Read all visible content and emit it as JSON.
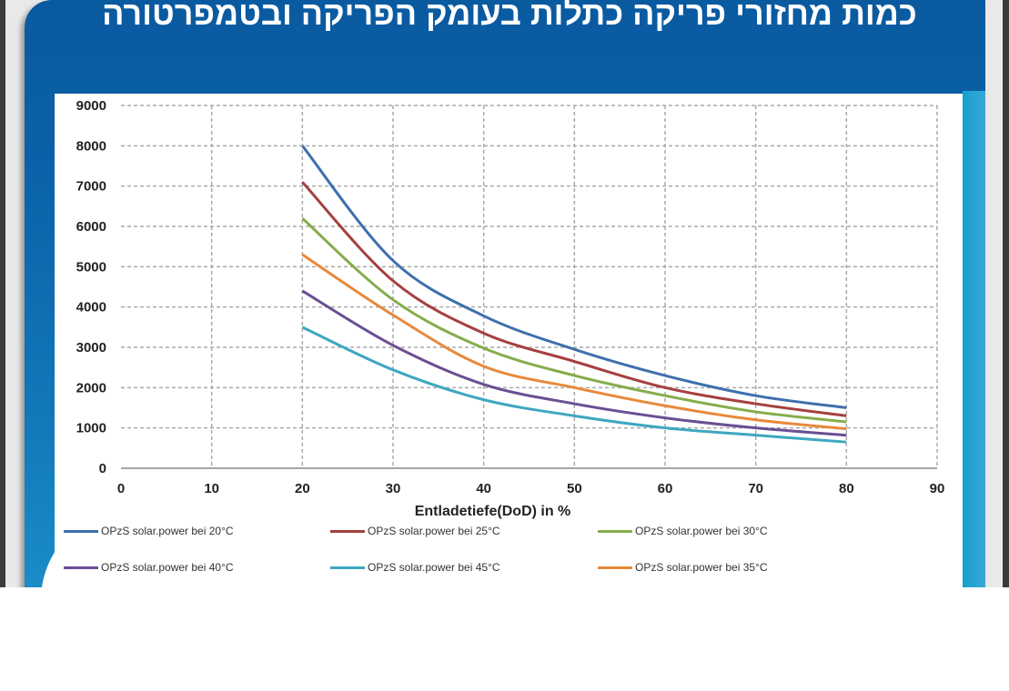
{
  "slide": {
    "title": "כמות מחזורי פריקה כתלות בעומק הפריקה ובטמפרטורה"
  },
  "chart_data": {
    "type": "line",
    "title": "",
    "xlabel": "Entladetiefe(DoD) in %",
    "ylabel": "",
    "xlim": [
      0,
      90
    ],
    "ylim": [
      0,
      9000
    ],
    "xticks": [
      "0",
      "10",
      "20",
      "30",
      "40",
      "50",
      "60",
      "70",
      "80",
      "90"
    ],
    "yticks": [
      "0",
      "1000",
      "2000",
      "3000",
      "4000",
      "5000",
      "6000",
      "7000",
      "8000",
      "9000"
    ],
    "grid": true,
    "legend_position": "bottom",
    "x": [
      20,
      30,
      40,
      50,
      60,
      70,
      80
    ],
    "series": [
      {
        "name": "OPzS solar.power bei 20°C",
        "color": "#3f6fad",
        "values": [
          8000,
          5150,
          3780,
          2950,
          2300,
          1800,
          1500
        ]
      },
      {
        "name": "OPzS solar.power bei 25°C",
        "color": "#a5403f",
        "values": [
          7100,
          4650,
          3350,
          2650,
          2000,
          1600,
          1300
        ]
      },
      {
        "name": "OPzS solar.power bei 30°C",
        "color": "#86ac4c",
        "values": [
          6200,
          4180,
          2980,
          2300,
          1800,
          1400,
          1150
        ]
      },
      {
        "name": "OPzS solar.power bei 40°C",
        "color": "#6a4f93",
        "values": [
          4400,
          3050,
          2080,
          1600,
          1250,
          1000,
          820
        ]
      },
      {
        "name": "OPzS solar.power bei 45°C",
        "color": "#3ea7c0",
        "values": [
          3500,
          2440,
          1700,
          1300,
          1000,
          820,
          650
        ]
      },
      {
        "name": "OPzS solar.power bei 35°C",
        "color": "#e8893a",
        "values": [
          5300,
          3800,
          2530,
          2000,
          1550,
          1200,
          980
        ]
      }
    ]
  }
}
